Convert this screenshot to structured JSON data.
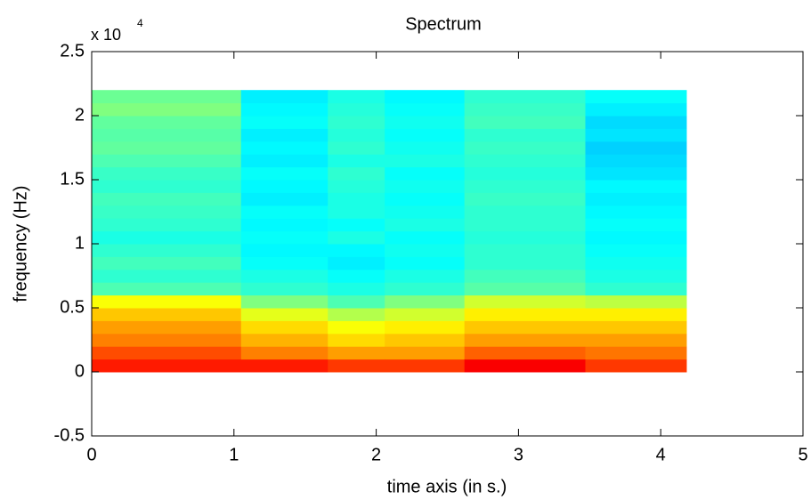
{
  "chart_data": {
    "type": "heatmap",
    "title": "Spectrum",
    "x_label": "time axis (in s.)",
    "y_label": "frequency (Hz)",
    "y_multiplier": "x 10",
    "y_multiplier_exponent": "4",
    "colormap": "jet",
    "clim": [
      0,
      1
    ],
    "time_edges": [
      0,
      1.05,
      1.66,
      2.06,
      2.62,
      3.47,
      4.18
    ],
    "freq_edges": [
      0,
      0.1,
      0.2,
      0.3,
      0.4,
      0.5,
      0.6,
      0.7,
      0.8,
      0.9,
      1.0,
      1.1,
      1.2,
      1.3,
      1.4,
      1.5,
      1.6,
      1.7,
      1.8,
      1.9,
      2.0,
      2.1,
      2.2
    ],
    "values": [
      [
        0.85,
        0.8,
        0.75,
        0.72,
        0.68,
        0.62,
        0.45,
        0.42,
        0.44,
        0.42,
        0.4,
        0.42,
        0.43,
        0.44,
        0.42,
        0.43,
        0.45,
        0.47,
        0.46,
        0.47,
        0.5,
        0.48
      ],
      [
        0.85,
        0.75,
        0.7,
        0.66,
        0.6,
        0.5,
        0.42,
        0.4,
        0.38,
        0.37,
        0.38,
        0.37,
        0.38,
        0.36,
        0.37,
        0.38,
        0.36,
        0.37,
        0.36,
        0.38,
        0.37,
        0.36
      ],
      [
        0.82,
        0.72,
        0.66,
        0.62,
        0.55,
        0.45,
        0.4,
        0.38,
        0.36,
        0.37,
        0.4,
        0.38,
        0.4,
        0.4,
        0.41,
        0.42,
        0.4,
        0.42,
        0.41,
        0.42,
        0.41,
        0.4
      ],
      [
        0.82,
        0.72,
        0.68,
        0.64,
        0.58,
        0.5,
        0.42,
        0.4,
        0.38,
        0.39,
        0.38,
        0.4,
        0.39,
        0.38,
        0.39,
        0.38,
        0.4,
        0.39,
        0.38,
        0.39,
        0.38,
        0.37
      ],
      [
        0.88,
        0.78,
        0.72,
        0.68,
        0.64,
        0.58,
        0.46,
        0.44,
        0.42,
        0.42,
        0.41,
        0.42,
        0.42,
        0.43,
        0.42,
        0.41,
        0.42,
        0.43,
        0.42,
        0.44,
        0.43,
        0.42
      ],
      [
        0.82,
        0.76,
        0.72,
        0.68,
        0.64,
        0.56,
        0.42,
        0.4,
        0.39,
        0.38,
        0.37,
        0.38,
        0.37,
        0.36,
        0.37,
        0.35,
        0.34,
        0.33,
        0.35,
        0.34,
        0.36,
        0.38
      ]
    ],
    "xlim": [
      0,
      5
    ],
    "xticks": [
      0,
      1,
      2,
      3,
      4,
      5
    ],
    "ylim": [
      -0.5,
      2.5
    ],
    "yticks": [
      -0.5,
      0,
      0.5,
      1,
      1.5,
      2,
      2.5
    ]
  }
}
